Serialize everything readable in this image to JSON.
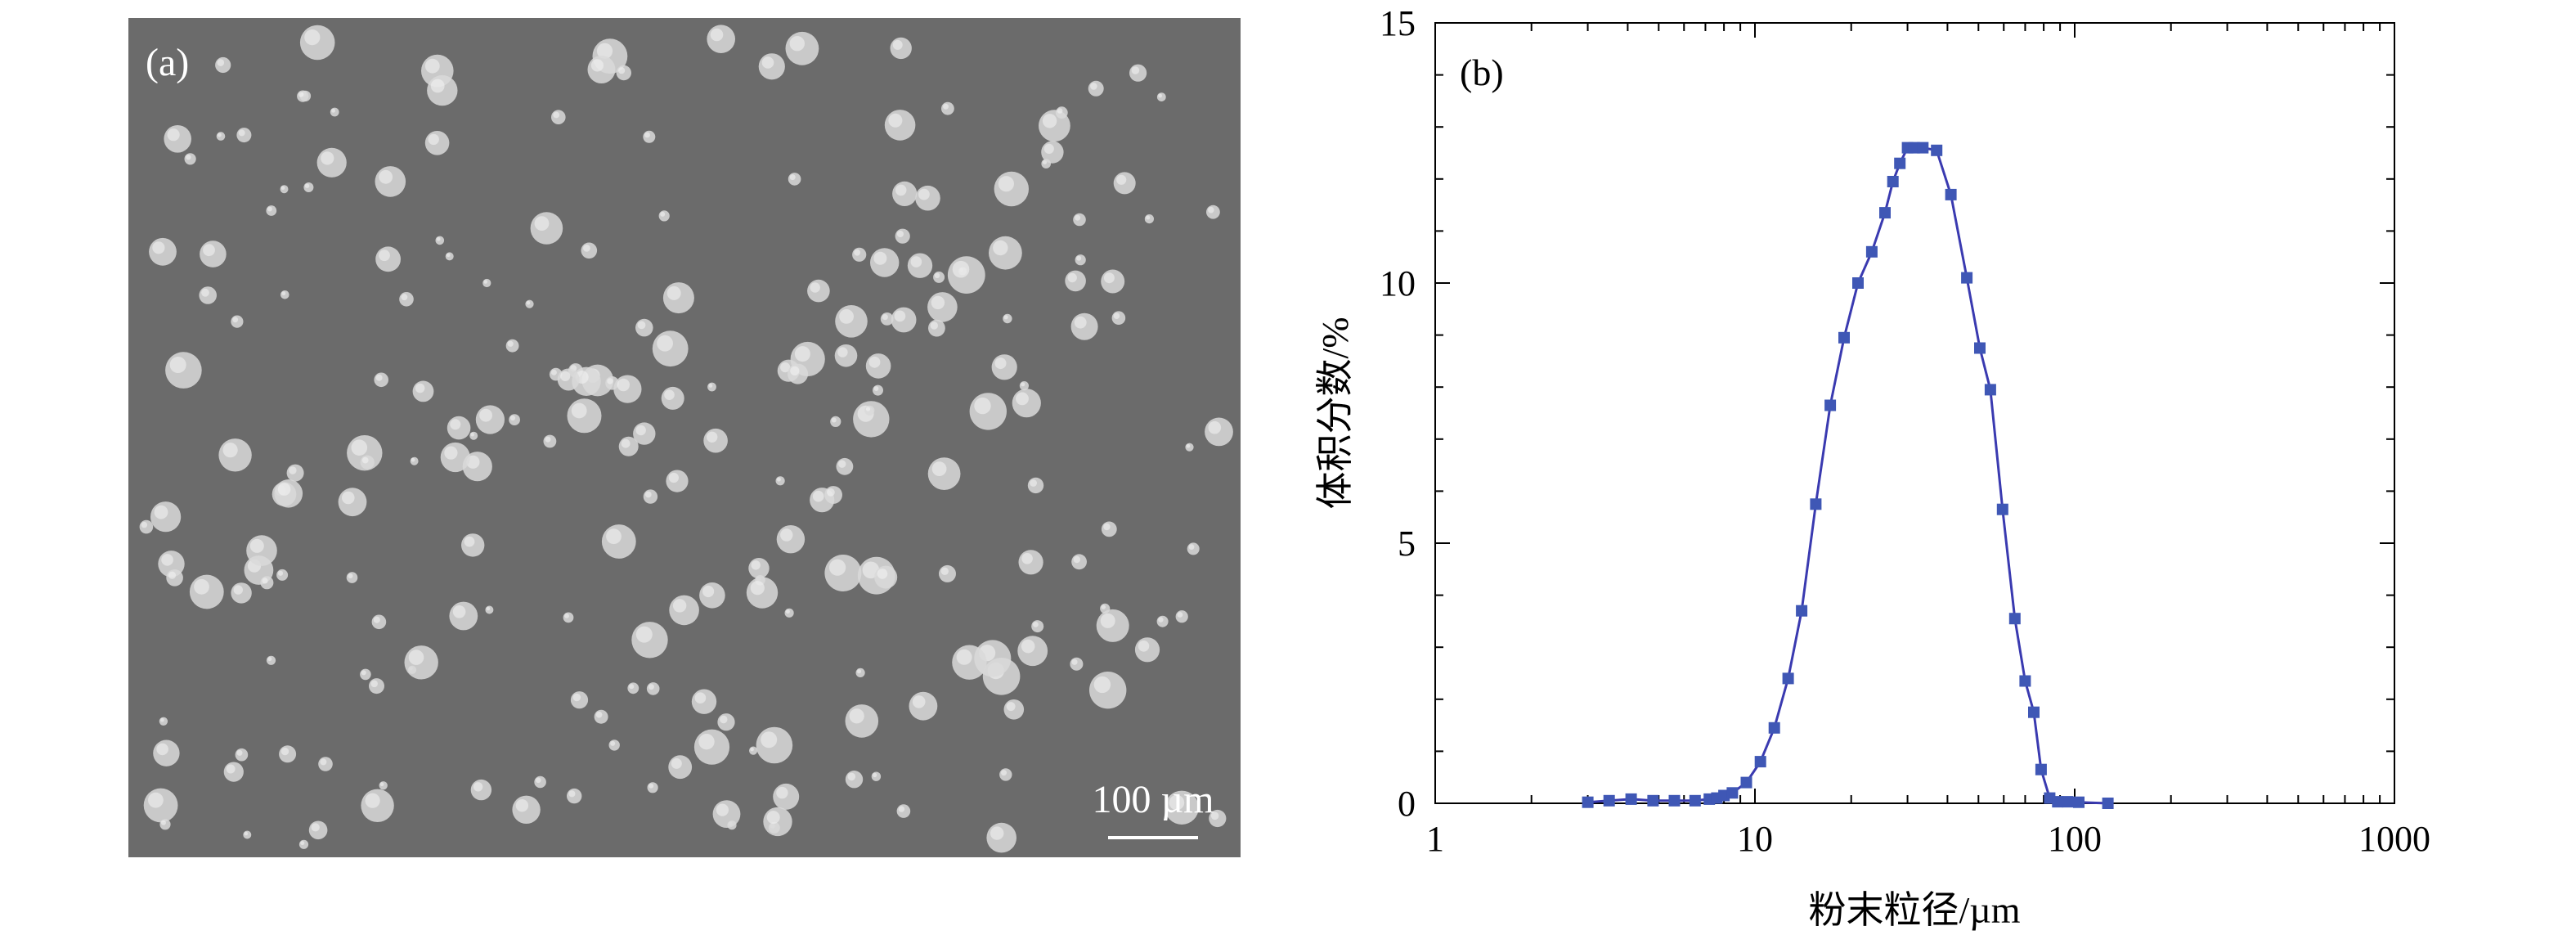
{
  "panel_a": {
    "label": "(a)",
    "scale_bar_label": "100 µm",
    "background_color": "#6b6b6b",
    "particle_color": "#d9d9d9"
  },
  "chart_data": {
    "type": "line",
    "panel_label": "(b)",
    "xlabel": "粉末粒径/µm",
    "ylabel": "体积分数/%",
    "x_scale": "log",
    "xlim": [
      1,
      1000
    ],
    "ylim": [
      0,
      15
    ],
    "x_ticks": [
      1,
      10,
      100,
      1000
    ],
    "x_tick_labels": [
      "1",
      "10",
      "100",
      "1000"
    ],
    "y_ticks": [
      0,
      5,
      10,
      15
    ],
    "y_tick_labels": [
      "0",
      "5",
      "10",
      "15"
    ],
    "grid": false,
    "line_color": "#3a3ab0",
    "marker_color": "#3f57b5",
    "marker": "square",
    "series": [
      {
        "x": [
          3.0,
          3.5,
          4.1,
          4.8,
          5.6,
          6.5,
          7.2,
          7.6,
          8.0,
          8.5,
          9.4,
          10.4,
          11.5,
          12.7,
          14.0,
          15.5,
          17.2,
          19.0,
          21.0,
          23.2,
          25.5,
          27.0,
          28.4,
          30.0,
          31.5,
          33.5,
          37.0,
          41.0,
          46.0,
          50.5,
          54.5,
          59.5,
          65.0,
          70.0,
          74.5,
          78.5,
          83.5,
          88.5,
          95.0,
          103.0,
          127.0
        ],
        "y": [
          0.02,
          0.05,
          0.08,
          0.05,
          0.05,
          0.05,
          0.08,
          0.1,
          0.15,
          0.2,
          0.4,
          0.8,
          1.45,
          2.4,
          3.7,
          5.75,
          7.65,
          8.95,
          10.0,
          10.6,
          11.35,
          11.95,
          12.3,
          12.6,
          12.6,
          12.6,
          12.55,
          11.7,
          10.1,
          8.75,
          7.95,
          5.65,
          3.55,
          2.35,
          1.75,
          0.65,
          0.1,
          0.03,
          0.03,
          0.02,
          0.0
        ]
      }
    ]
  }
}
